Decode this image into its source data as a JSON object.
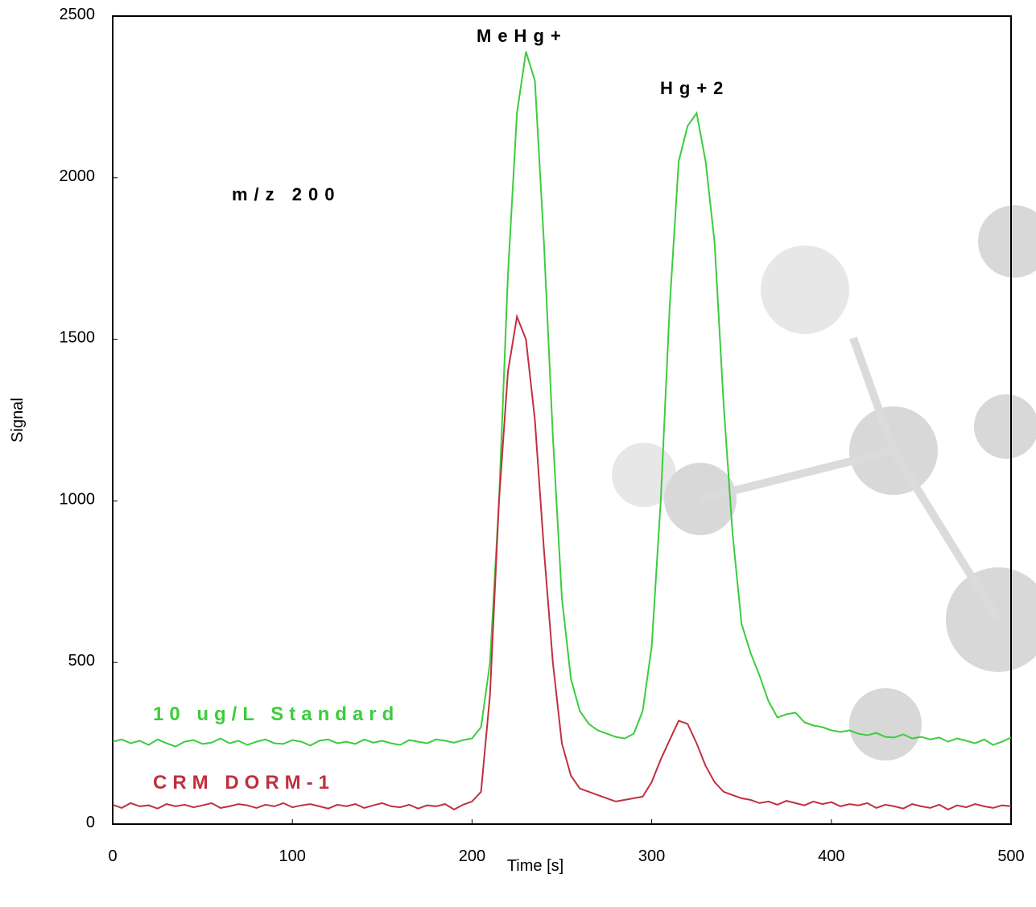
{
  "chart_data": {
    "type": "line",
    "x_label": "Time [s]",
    "y_label": "Signal",
    "annotations": [
      "MeHg+",
      "Hg+2",
      "m/z 200"
    ],
    "xlim": [
      0,
      500
    ],
    "xticks": [
      0,
      100,
      200,
      300,
      400,
      500
    ],
    "ylim": [
      0,
      2500
    ],
    "yticks": [
      0,
      500,
      1000,
      1500,
      2000,
      2500
    ],
    "grid": false,
    "x": [
      0,
      5,
      10,
      15,
      20,
      25,
      30,
      35,
      40,
      45,
      50,
      55,
      60,
      65,
      70,
      75,
      80,
      85,
      90,
      95,
      100,
      105,
      110,
      115,
      120,
      125,
      130,
      135,
      140,
      145,
      150,
      155,
      160,
      165,
      170,
      175,
      180,
      185,
      190,
      195,
      200,
      205,
      210,
      215,
      220,
      225,
      230,
      235,
      240,
      245,
      250,
      255,
      260,
      265,
      270,
      275,
      280,
      285,
      290,
      295,
      300,
      305,
      310,
      315,
      320,
      325,
      330,
      335,
      340,
      345,
      350,
      355,
      360,
      365,
      370,
      375,
      380,
      385,
      390,
      395,
      400,
      405,
      410,
      415,
      420,
      425,
      430,
      435,
      440,
      445,
      450,
      455,
      460,
      465,
      470,
      475,
      480,
      485,
      490,
      495,
      500
    ],
    "series": [
      {
        "name": "10 ug/L Standard",
        "color": "#3ccc3c",
        "values": [
          255,
          262,
          250,
          258,
          245,
          262,
          250,
          240,
          255,
          260,
          248,
          252,
          265,
          250,
          258,
          245,
          255,
          262,
          250,
          248,
          260,
          255,
          243,
          258,
          262,
          250,
          255,
          248,
          262,
          252,
          258,
          250,
          245,
          260,
          255,
          250,
          262,
          258,
          252,
          260,
          265,
          300,
          500,
          1000,
          1700,
          2200,
          2390,
          2300,
          1800,
          1200,
          700,
          450,
          350,
          310,
          290,
          280,
          270,
          265,
          280,
          350,
          550,
          1000,
          1600,
          2050,
          2160,
          2200,
          2050,
          1800,
          1300,
          900,
          620,
          530,
          460,
          380,
          330,
          340,
          345,
          315,
          305,
          300,
          290,
          285,
          290,
          280,
          275,
          282,
          270,
          268,
          278,
          265,
          270,
          262,
          268,
          255,
          265,
          258,
          250,
          262,
          245,
          255,
          268
        ]
      },
      {
        "name": "CRM DORM-1",
        "color": "#c03040",
        "values": [
          60,
          50,
          65,
          55,
          58,
          48,
          62,
          55,
          60,
          52,
          58,
          65,
          50,
          55,
          62,
          58,
          50,
          60,
          55,
          65,
          52,
          58,
          62,
          55,
          48,
          60,
          55,
          62,
          50,
          58,
          65,
          55,
          52,
          60,
          48,
          58,
          55,
          62,
          45,
          60,
          70,
          100,
          400,
          1000,
          1400,
          1570,
          1500,
          1250,
          850,
          500,
          250,
          150,
          110,
          100,
          90,
          80,
          70,
          75,
          80,
          85,
          130,
          200,
          260,
          320,
          310,
          250,
          180,
          130,
          100,
          90,
          80,
          75,
          65,
          70,
          60,
          72,
          65,
          58,
          70,
          62,
          68,
          55,
          62,
          58,
          65,
          50,
          60,
          55,
          48,
          62,
          55,
          50,
          60,
          45,
          58,
          52,
          62,
          55,
          50,
          58,
          55
        ]
      }
    ]
  }
}
